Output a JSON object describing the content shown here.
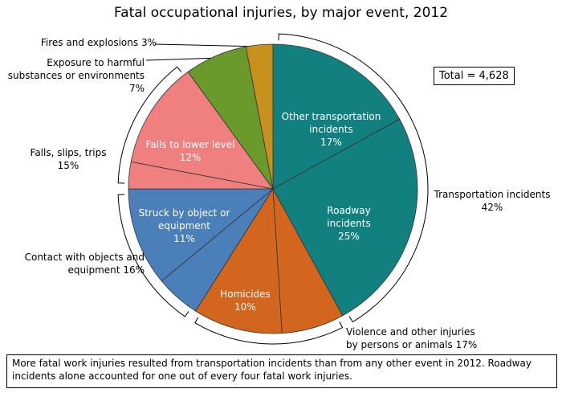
{
  "chart_data": {
    "type": "pie",
    "title": "Fatal occupational injuries, by major event, 2012",
    "categories": [
      "Other transportation incidents",
      "Roadway incidents",
      null,
      "Homicides",
      null,
      "Struck by object or equipment",
      null,
      "Falls to lower level",
      null,
      null
    ],
    "values": [
      17,
      25,
      7,
      10,
      5,
      11,
      3,
      12,
      7,
      3
    ],
    "value_labels": [
      "17%",
      "25%",
      null,
      "10%",
      null,
      "11%",
      null,
      "12%",
      null,
      null
    ],
    "colors": [
      "#12807f",
      "#12807f",
      "#d2661f",
      "#d2661f",
      "#4a7fb9",
      "#4a7fb9",
      "#f08080",
      "#f08080",
      "#6b9a2c",
      "#c8901c"
    ],
    "groups": [
      {
        "name": "Transportation incidents",
        "value": 42,
        "value_label": "42%"
      },
      {
        "name": "Violence and other injuries by persons or animals",
        "value": 17,
        "value_label": "17%"
      },
      {
        "name": "Contact with objects and equipment",
        "value": 16,
        "value_label": "16%"
      },
      {
        "name": "Falls, slips, trips",
        "value": 15,
        "value_label": "15%"
      },
      {
        "name": "Exposure to harmful substances or environments",
        "value": 7,
        "value_label": "7%"
      },
      {
        "name": "Fires and explosions",
        "value": 3,
        "value_label": "3%"
      }
    ],
    "total": "Total = 4,628",
    "note": "More fatal work injuries resulted from transportation incidents than from any other event in 2012.  Roadway incidents alone accounted for one out of every four fatal work injuries."
  }
}
